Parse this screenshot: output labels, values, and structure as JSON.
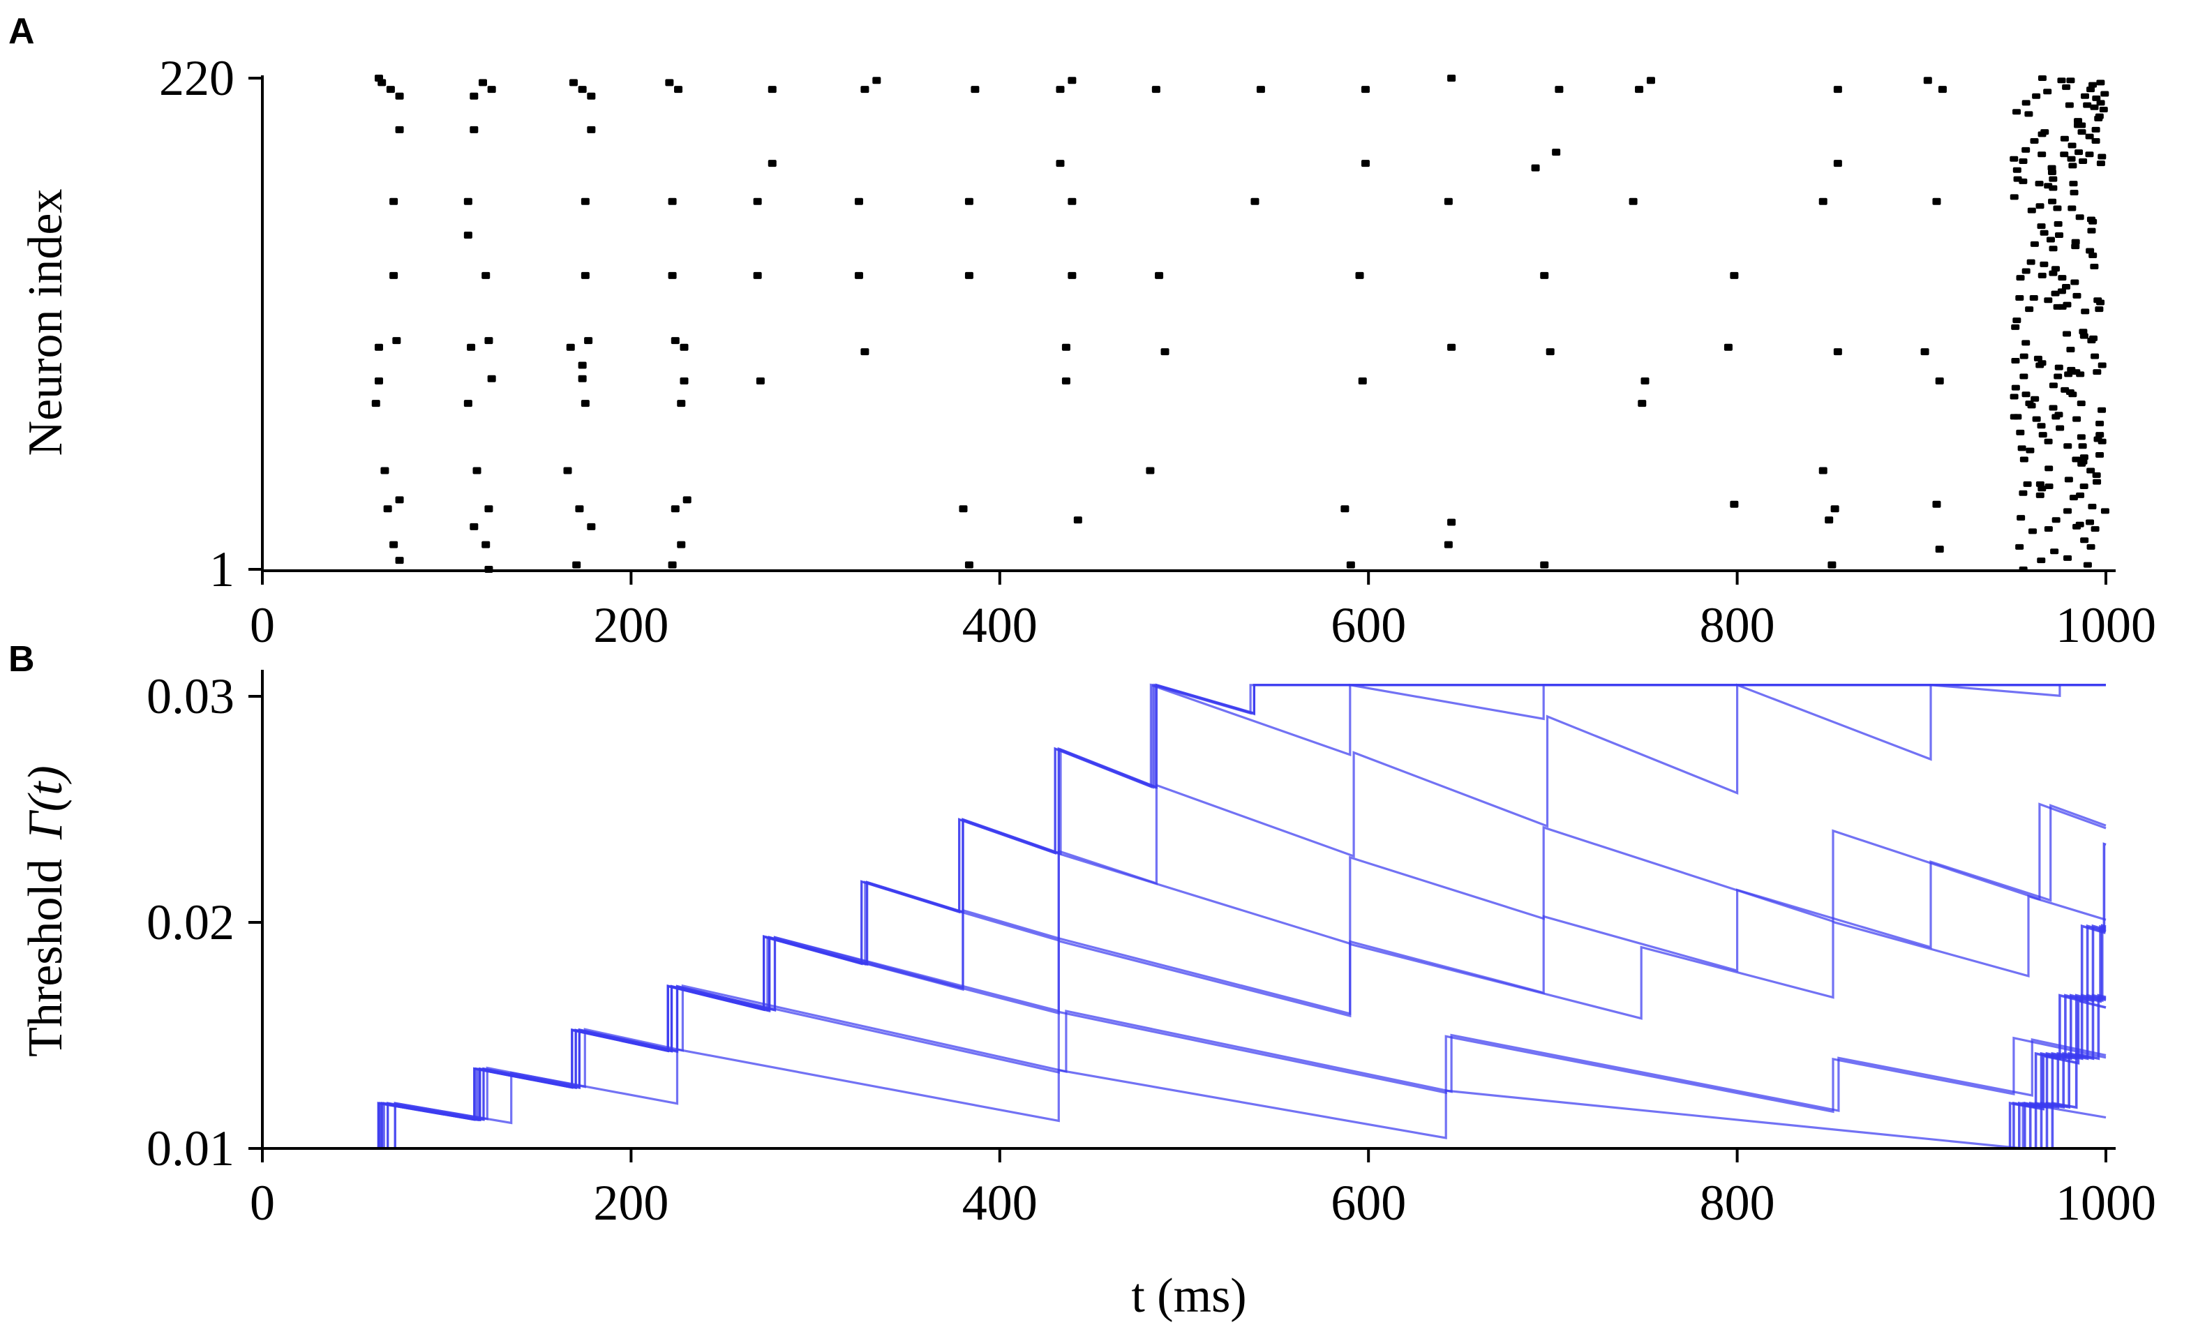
{
  "chart_data": [
    {
      "panel_label": "A",
      "type": "scatter",
      "ylabel": "Neuron index",
      "xlim": [
        0,
        1000
      ],
      "ylim": [
        1,
        220
      ],
      "x_ticks": [
        "0",
        "200",
        "400",
        "600",
        "800",
        "1000"
      ],
      "y_ticks": [
        "1",
        "220"
      ],
      "marker_color": "#000000",
      "periodic_columns": [
        {
          "t": 68,
          "neurons": [
            5,
            12,
            28,
            32,
            45,
            75,
            85,
            100,
            103,
            132,
            165,
            197,
            212,
            215,
            218,
            220
          ]
        },
        {
          "t": 118,
          "neurons": [
            1,
            12,
            20,
            28,
            45,
            75,
            86,
            100,
            103,
            132,
            150,
            165,
            197,
            212,
            215,
            218
          ]
        },
        {
          "t": 172,
          "neurons": [
            3,
            20,
            28,
            45,
            75,
            86,
            92,
            100,
            103,
            132,
            165,
            197,
            212,
            215,
            218
          ]
        },
        {
          "t": 224,
          "neurons": [
            3,
            12,
            28,
            32,
            75,
            85,
            100,
            103,
            132,
            165,
            215,
            218
          ]
        },
        {
          "t": 275,
          "neurons": [
            85,
            132,
            165,
            182,
            215
          ]
        },
        {
          "t": 330,
          "neurons": [
            98,
            132,
            165,
            215,
            219
          ]
        },
        {
          "t": 385,
          "neurons": [
            3,
            28,
            132,
            165,
            215
          ]
        },
        {
          "t": 436,
          "neurons": [
            23,
            85,
            100,
            132,
            165,
            182,
            215,
            219
          ]
        },
        {
          "t": 488,
          "neurons": [
            45,
            98,
            132,
            215
          ]
        },
        {
          "t": 540,
          "neurons": [
            165,
            215
          ]
        },
        {
          "t": 592,
          "neurons": [
            3,
            28,
            85,
            132,
            182,
            215
          ]
        },
        {
          "t": 645,
          "neurons": [
            12,
            22,
            100,
            165,
            220
          ]
        },
        {
          "t": 697,
          "neurons": [
            3,
            98,
            132,
            180,
            187,
            215
          ]
        },
        {
          "t": 750,
          "neurons": [
            75,
            85,
            165,
            215,
            219
          ]
        },
        {
          "t": 800,
          "neurons": [
            30,
            100,
            132
          ]
        },
        {
          "t": 853,
          "neurons": [
            3,
            23,
            28,
            45,
            98,
            165,
            182,
            215
          ]
        },
        {
          "t": 905,
          "neurons": [
            10,
            30,
            85,
            98,
            165,
            215,
            219
          ]
        }
      ],
      "final_burst": {
        "t_start": 950,
        "t_end": 1000,
        "neurons": "1-220"
      }
    },
    {
      "panel_label": "B",
      "type": "line",
      "ylabel": "Threshold",
      "ylabel_symbol": "Γ(t)",
      "xlabel": "t (ms)",
      "xlim": [
        0,
        1000
      ],
      "ylim": [
        0.01,
        0.03
      ],
      "x_ticks": [
        "0",
        "200",
        "400",
        "600",
        "800",
        "1000"
      ],
      "y_ticks": [
        "0.01",
        "0.02",
        "0.03"
      ],
      "line_color": "#3b3bf0",
      "params": {
        "baseline": 0.01,
        "jump_factor": 1.2,
        "decay_per_ms": 0.0012,
        "t_end": 1000
      },
      "series": [
        {
          "spikes": [
            63,
            115,
            168,
            220,
            272,
            325,
            378,
            430,
            483,
            536,
            590,
            642,
            695,
            748,
            800,
            855,
            905,
            995
          ]
        },
        {
          "spikes": [
            65,
            118,
            170,
            222,
            275,
            328,
            380,
            432,
            485,
            538,
            590,
            642,
            695,
            748,
            800,
            852,
            905,
            996
          ]
        },
        {
          "spikes": [
            65,
            118,
            170,
            222,
            275,
            328,
            380,
            433,
            485,
            538,
            590,
            643,
            695,
            748,
            800,
            852,
            980
          ]
        },
        {
          "spikes": [
            64,
            117,
            170,
            222,
            274,
            327,
            380,
            432,
            484,
            538,
            590,
            642,
            694,
            748,
            800,
            853,
            984
          ]
        },
        {
          "spikes": [
            63,
            115,
            168,
            220,
            272,
            325,
            378,
            430,
            482,
            590,
            695,
            800,
            905,
            992
          ]
        },
        {
          "spikes": [
            68,
            120,
            172,
            225,
            278,
            380,
            432,
            485,
            592,
            697,
            800,
            905,
            975
          ]
        },
        {
          "spikes": [
            68,
            120,
            172,
            225,
            278,
            432,
            590,
            695,
            800,
            905,
            970
          ]
        },
        {
          "spikes": [
            64,
            116,
            168,
            220,
            272,
            380,
            432,
            590,
            695,
            852,
            964
          ]
        },
        {
          "spikes": [
            63,
            115,
            168,
            220,
            275,
            432,
            590,
            748,
            852,
            958
          ]
        },
        {
          "spikes": [
            66,
            118,
            172,
            225,
            432,
            642,
            852,
            950
          ]
        },
        {
          "spikes": [
            72,
            122,
            175,
            228,
            436,
            645,
            855,
            960
          ]
        },
        {
          "spikes": [
            72,
            135,
            225,
            432,
            642,
            955
          ]
        }
      ],
      "burst_series": [
        {
          "spikes": [
            950,
            962,
            975,
            987,
            999
          ]
        },
        {
          "spikes": [
            953,
            965,
            978,
            990
          ]
        },
        {
          "spikes": [
            956,
            968,
            981,
            993
          ]
        },
        {
          "spikes": [
            959,
            971,
            984,
            997
          ]
        },
        {
          "spikes": [
            962,
            974,
            987,
            998
          ]
        },
        {
          "spikes": [
            965,
            977,
            990
          ]
        },
        {
          "spikes": [
            968,
            980,
            993
          ]
        },
        {
          "spikes": [
            971,
            984,
            996
          ]
        },
        {
          "spikes": [
            948,
            966,
            985
          ]
        }
      ]
    }
  ]
}
